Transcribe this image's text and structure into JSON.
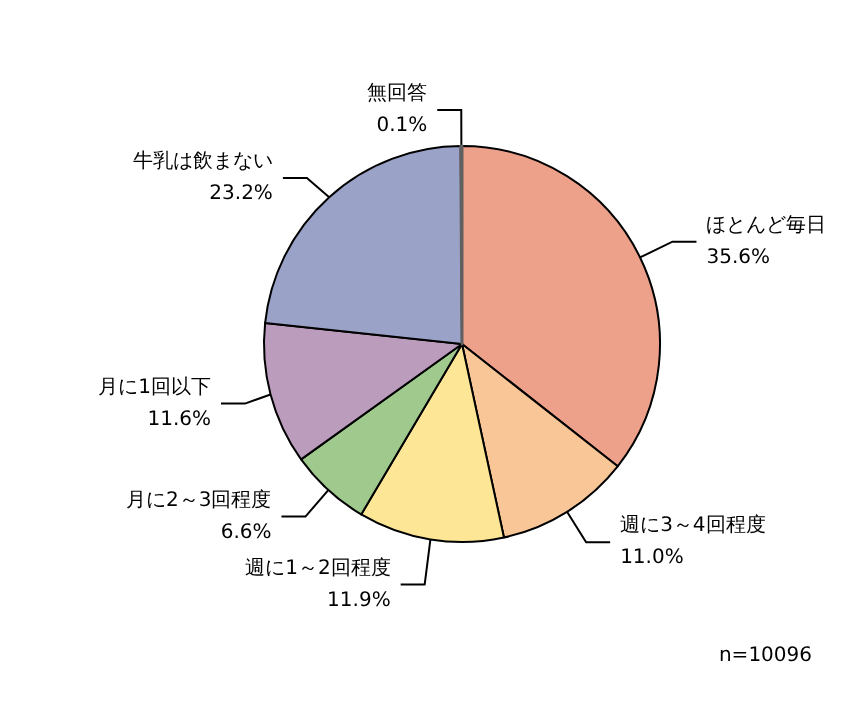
{
  "chart_data": {
    "type": "pie",
    "categories": [
      "ほとんど毎日",
      "週に3～4回程度",
      "週に1～2回程度",
      "月に2～3回程度",
      "月に1回以下",
      "牛乳は飲まない",
      "無回答"
    ],
    "values": [
      35.6,
      11.0,
      11.9,
      6.6,
      11.6,
      23.2,
      0.1
    ],
    "value_labels": [
      "35.6%",
      "11.0%",
      "11.9%",
      "6.6%",
      "11.6%",
      "23.2%",
      "0.1%"
    ],
    "colors": [
      "#eda08a",
      "#f9c797",
      "#fde696",
      "#a0c98d",
      "#bb9cbd",
      "#9aa2c8",
      "#606060"
    ],
    "annotations": [
      "n=10096"
    ]
  }
}
